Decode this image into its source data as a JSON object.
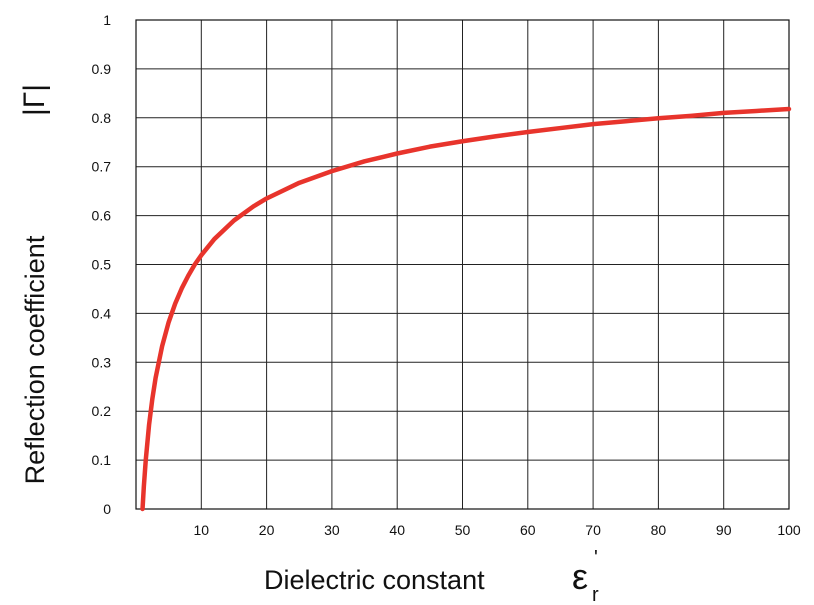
{
  "chart_data": {
    "type": "line",
    "title": "",
    "xlabel": "Dielectric constant",
    "xlabel_symbol": "ε",
    "xlabel_symbol_sub": "r",
    "xlabel_symbol_sup": "'",
    "ylabel": "Reflection coefficient",
    "ylabel_symbol": "|Γ|",
    "xlim": [
      0,
      100
    ],
    "ylim": [
      0,
      1
    ],
    "x_ticks": [
      10,
      20,
      30,
      40,
      50,
      60,
      70,
      80,
      90,
      100
    ],
    "y_ticks": [
      0,
      0.1,
      0.2,
      0.3,
      0.4,
      0.5,
      0.6,
      0.7,
      0.8,
      0.9,
      1
    ],
    "x_tick_labels": [
      "10",
      "20",
      "30",
      "40",
      "50",
      "60",
      "70",
      "80",
      "90",
      "100"
    ],
    "y_tick_labels": [
      "0",
      "0.1",
      "0.2",
      "0.3",
      "0.4",
      "0.5",
      "0.6",
      "0.7",
      "0.8",
      "0.9",
      "1"
    ],
    "grid": true,
    "line_color": "#e8342c",
    "series": [
      {
        "x": [
          1,
          1.2,
          1.5,
          2,
          2.5,
          3,
          4,
          5,
          6,
          7,
          8,
          9,
          10,
          12,
          15,
          18,
          20,
          25,
          30,
          35,
          40,
          45,
          50,
          55,
          60,
          65,
          70,
          75,
          80,
          85,
          90,
          95,
          100
        ],
        "y": [
          0,
          0.046,
          0.101,
          0.172,
          0.225,
          0.268,
          0.333,
          0.382,
          0.42,
          0.451,
          0.477,
          0.5,
          0.519,
          0.552,
          0.59,
          0.619,
          0.635,
          0.667,
          0.691,
          0.711,
          0.727,
          0.741,
          0.752,
          0.762,
          0.771,
          0.779,
          0.787,
          0.793,
          0.799,
          0.804,
          0.81,
          0.814,
          0.818
        ]
      }
    ]
  }
}
